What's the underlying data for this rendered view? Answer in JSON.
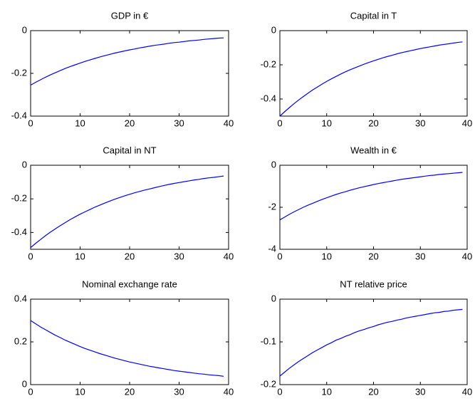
{
  "chart_data": [
    {
      "type": "line",
      "title": "GDP in €",
      "color": "#0000ff",
      "x": [
        0,
        1,
        2,
        3,
        4,
        5,
        6,
        7,
        8,
        9,
        10,
        11,
        12,
        13,
        14,
        15,
        16,
        17,
        18,
        19,
        20,
        21,
        22,
        23,
        24,
        25,
        26,
        27,
        28,
        29,
        30,
        31,
        32,
        33,
        34,
        35,
        36,
        37,
        38,
        39
      ],
      "values": [
        -0.255,
        -0.242,
        -0.23,
        -0.218,
        -0.207,
        -0.197,
        -0.187,
        -0.177,
        -0.168,
        -0.16,
        -0.152,
        -0.144,
        -0.137,
        -0.13,
        -0.123,
        -0.117,
        -0.111,
        -0.105,
        -0.1,
        -0.095,
        -0.09,
        -0.086,
        -0.081,
        -0.077,
        -0.073,
        -0.069,
        -0.066,
        -0.063,
        -0.059,
        -0.056,
        -0.054,
        -0.051,
        -0.048,
        -0.046,
        -0.044,
        -0.041,
        -0.039,
        -0.037,
        -0.035,
        -0.034
      ],
      "xlim": [
        0,
        40
      ],
      "xticks": [
        0,
        10,
        20,
        30,
        40
      ],
      "ylim": [
        -0.4,
        0
      ],
      "yticks": [
        -0.4,
        -0.2,
        0
      ]
    },
    {
      "type": "line",
      "title": "Capital in T",
      "color": "#0000ff",
      "x": [
        0,
        1,
        2,
        3,
        4,
        5,
        6,
        7,
        8,
        9,
        10,
        11,
        12,
        13,
        14,
        15,
        16,
        17,
        18,
        19,
        20,
        21,
        22,
        23,
        24,
        25,
        26,
        27,
        28,
        29,
        30,
        31,
        32,
        33,
        34,
        35,
        36,
        37,
        38,
        39
      ],
      "values": [
        -0.5,
        -0.475,
        -0.451,
        -0.428,
        -0.406,
        -0.386,
        -0.366,
        -0.347,
        -0.33,
        -0.313,
        -0.297,
        -0.282,
        -0.268,
        -0.254,
        -0.241,
        -0.229,
        -0.218,
        -0.207,
        -0.196,
        -0.186,
        -0.177,
        -0.168,
        -0.159,
        -0.151,
        -0.144,
        -0.136,
        -0.129,
        -0.123,
        -0.117,
        -0.111,
        -0.105,
        -0.1,
        -0.095,
        -0.09,
        -0.085,
        -0.081,
        -0.077,
        -0.073,
        -0.069,
        -0.066
      ],
      "xlim": [
        0,
        40
      ],
      "xticks": [
        0,
        10,
        20,
        30,
        40
      ],
      "ylim": [
        -0.5,
        0
      ],
      "yticks": [
        -0.4,
        -0.2,
        0
      ]
    },
    {
      "type": "line",
      "title": "Capital in NT",
      "color": "#0000ff",
      "x": [
        0,
        1,
        2,
        3,
        4,
        5,
        6,
        7,
        8,
        9,
        10,
        11,
        12,
        13,
        14,
        15,
        16,
        17,
        18,
        19,
        20,
        21,
        22,
        23,
        24,
        25,
        26,
        27,
        28,
        29,
        30,
        31,
        32,
        33,
        34,
        35,
        36,
        37,
        38,
        39
      ],
      "values": [
        -0.49,
        -0.465,
        -0.442,
        -0.419,
        -0.398,
        -0.378,
        -0.359,
        -0.341,
        -0.323,
        -0.307,
        -0.291,
        -0.277,
        -0.263,
        -0.249,
        -0.237,
        -0.225,
        -0.213,
        -0.202,
        -0.192,
        -0.182,
        -0.173,
        -0.164,
        -0.156,
        -0.148,
        -0.141,
        -0.134,
        -0.127,
        -0.12,
        -0.114,
        -0.108,
        -0.103,
        -0.098,
        -0.093,
        -0.088,
        -0.084,
        -0.079,
        -0.075,
        -0.072,
        -0.068,
        -0.064
      ],
      "xlim": [
        0,
        40
      ],
      "xticks": [
        0,
        10,
        20,
        30,
        40
      ],
      "ylim": [
        -0.5,
        0
      ],
      "yticks": [
        -0.4,
        -0.2,
        0
      ]
    },
    {
      "type": "line",
      "title": "Wealth in €",
      "color": "#0000ff",
      "x": [
        0,
        1,
        2,
        3,
        4,
        5,
        6,
        7,
        8,
        9,
        10,
        11,
        12,
        13,
        14,
        15,
        16,
        17,
        18,
        19,
        20,
        21,
        22,
        23,
        24,
        25,
        26,
        27,
        28,
        29,
        30,
        31,
        32,
        33,
        34,
        35,
        36,
        37,
        38,
        39
      ],
      "values": [
        -2.6,
        -2.47,
        -2.34,
        -2.22,
        -2.11,
        -2.0,
        -1.9,
        -1.81,
        -1.72,
        -1.63,
        -1.55,
        -1.47,
        -1.39,
        -1.32,
        -1.26,
        -1.19,
        -1.13,
        -1.07,
        -1.02,
        -0.97,
        -0.92,
        -0.87,
        -0.83,
        -0.79,
        -0.75,
        -0.71,
        -0.67,
        -0.64,
        -0.61,
        -0.58,
        -0.55,
        -0.52,
        -0.49,
        -0.47,
        -0.44,
        -0.42,
        -0.4,
        -0.38,
        -0.36,
        -0.34
      ],
      "xlim": [
        0,
        40
      ],
      "xticks": [
        0,
        10,
        20,
        30,
        40
      ],
      "ylim": [
        -4,
        0
      ],
      "yticks": [
        -4,
        -2,
        0
      ]
    },
    {
      "type": "line",
      "title": "Nominal exchange rate",
      "color": "#0000ff",
      "x": [
        0,
        1,
        2,
        3,
        4,
        5,
        6,
        7,
        8,
        9,
        10,
        11,
        12,
        13,
        14,
        15,
        16,
        17,
        18,
        19,
        20,
        21,
        22,
        23,
        24,
        25,
        26,
        27,
        28,
        29,
        30,
        31,
        32,
        33,
        34,
        35,
        36,
        37,
        38,
        39
      ],
      "values": [
        0.3,
        0.285,
        0.27,
        0.257,
        0.244,
        0.231,
        0.22,
        0.208,
        0.198,
        0.188,
        0.178,
        0.169,
        0.161,
        0.153,
        0.145,
        0.138,
        0.131,
        0.124,
        0.118,
        0.112,
        0.106,
        0.101,
        0.096,
        0.091,
        0.086,
        0.082,
        0.078,
        0.074,
        0.07,
        0.066,
        0.063,
        0.06,
        0.057,
        0.054,
        0.051,
        0.049,
        0.046,
        0.044,
        0.042,
        0.039
      ],
      "xlim": [
        0,
        40
      ],
      "xticks": [
        0,
        10,
        20,
        30,
        40
      ],
      "ylim": [
        0,
        0.4
      ],
      "yticks": [
        0,
        0.2,
        0.4
      ]
    },
    {
      "type": "line",
      "title": "NT relative price",
      "color": "#0000ff",
      "x": [
        0,
        1,
        2,
        3,
        4,
        5,
        6,
        7,
        8,
        9,
        10,
        11,
        12,
        13,
        14,
        15,
        16,
        17,
        18,
        19,
        20,
        21,
        22,
        23,
        24,
        25,
        26,
        27,
        28,
        29,
        30,
        31,
        32,
        33,
        34,
        35,
        36,
        37,
        38,
        39
      ],
      "values": [
        -0.18,
        -0.171,
        -0.162,
        -0.154,
        -0.146,
        -0.139,
        -0.132,
        -0.125,
        -0.119,
        -0.113,
        -0.107,
        -0.102,
        -0.096,
        -0.092,
        -0.087,
        -0.083,
        -0.078,
        -0.074,
        -0.071,
        -0.067,
        -0.064,
        -0.06,
        -0.057,
        -0.054,
        -0.052,
        -0.049,
        -0.047,
        -0.044,
        -0.042,
        -0.04,
        -0.038,
        -0.036,
        -0.034,
        -0.032,
        -0.031,
        -0.029,
        -0.028,
        -0.026,
        -0.025,
        -0.024
      ],
      "xlim": [
        0,
        40
      ],
      "xticks": [
        0,
        10,
        20,
        30,
        40
      ],
      "ylim": [
        -0.2,
        0
      ],
      "yticks": [
        -0.2,
        -0.1,
        0
      ]
    }
  ]
}
